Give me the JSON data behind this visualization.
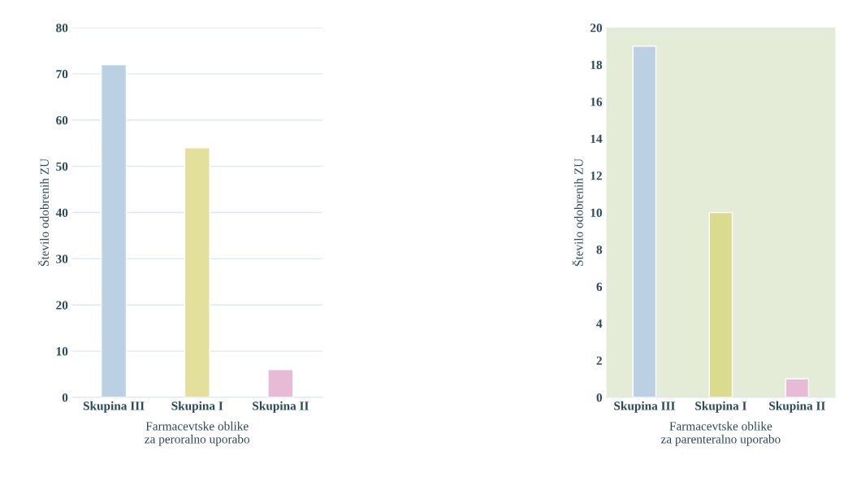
{
  "chart_data": [
    {
      "type": "bar",
      "categories": [
        "Skupina III",
        "Skupina I",
        "Skupina II"
      ],
      "values": [
        72,
        54,
        6
      ],
      "colors": [
        "#b4d2ea",
        "#eeec8e",
        "#eeb4d6"
      ],
      "xlabel": "Farmacevtske oblike\nza peroralno uporabo",
      "ylabel": "Število odobrenih ZU",
      "ylim": [
        0,
        80
      ],
      "yticks": [
        0,
        10,
        20,
        30,
        40,
        50,
        60,
        70,
        80
      ],
      "grid": "y"
    },
    {
      "type": "bar",
      "categories": [
        "Skupina III",
        "Skupina I",
        "Skupina II"
      ],
      "values": [
        19,
        10,
        1
      ],
      "colors": [
        "#b4d2ea",
        "#e8e882",
        "#eeb4d6"
      ],
      "xlabel": "Farmacevtske oblike\nza parenteralno uporabo",
      "ylabel": "Število odobrenih ZU",
      "ylim": [
        0,
        20
      ],
      "yticks": [
        0,
        2,
        4,
        6,
        8,
        10,
        12,
        14,
        16,
        18,
        20
      ]
    }
  ]
}
